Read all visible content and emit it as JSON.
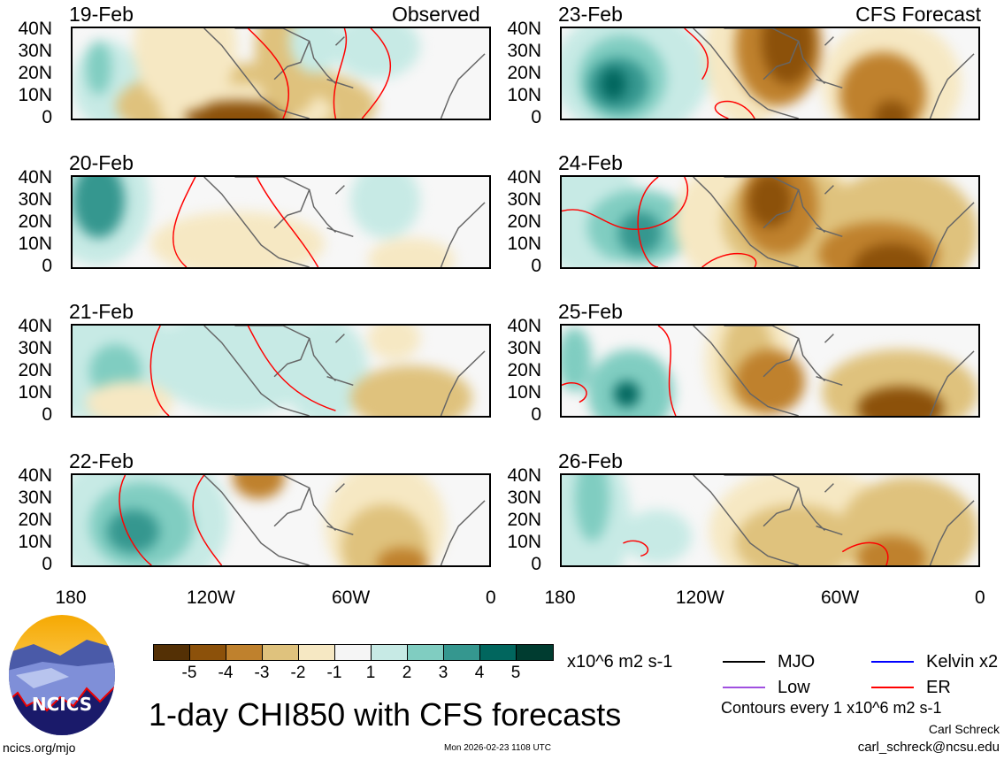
{
  "header": {
    "observed_label": "Observed",
    "forecast_label": "CFS Forecast"
  },
  "panels_observed": [
    {
      "date": "19-Feb"
    },
    {
      "date": "20-Feb"
    },
    {
      "date": "21-Feb"
    },
    {
      "date": "22-Feb"
    }
  ],
  "panels_forecast": [
    {
      "date": "23-Feb"
    },
    {
      "date": "24-Feb"
    },
    {
      "date": "25-Feb"
    },
    {
      "date": "26-Feb"
    }
  ],
  "y_axis": [
    "40N",
    "30N",
    "20N",
    "10N",
    "0"
  ],
  "x_axis": [
    "180",
    "120W",
    "60W",
    "0"
  ],
  "colorbar": {
    "colors": [
      "#543005",
      "#8c510a",
      "#bf812d",
      "#dfc27d",
      "#f6e8c3",
      "#f5f5f5",
      "#c7eae5",
      "#80cdc1",
      "#35978f",
      "#01665e",
      "#003c30"
    ],
    "labels": [
      "-5",
      "-4",
      "-3",
      "-2",
      "-1",
      "1",
      "2",
      "3",
      "4",
      "5"
    ],
    "units": "x10^6 m2 s-1"
  },
  "legend": {
    "items": [
      {
        "label": "MJO",
        "color": "#000000"
      },
      {
        "label": "Kelvin x2",
        "color": "#0000ff"
      },
      {
        "label": "Low",
        "color": "#a050e0"
      },
      {
        "label": "ER",
        "color": "#ff0000"
      }
    ],
    "contour_note": "Contours every 1 x10^6 m2 s-1"
  },
  "footer": {
    "title": "1-day CHI850 with CFS forecasts",
    "logo_text": "NCICS",
    "site": "ncics.org/mjo",
    "timestamp": "Mon 2026-02-23 1108 UTC",
    "author": "Carl Schreck",
    "email": "carl_schreck@ncsu.edu"
  }
}
